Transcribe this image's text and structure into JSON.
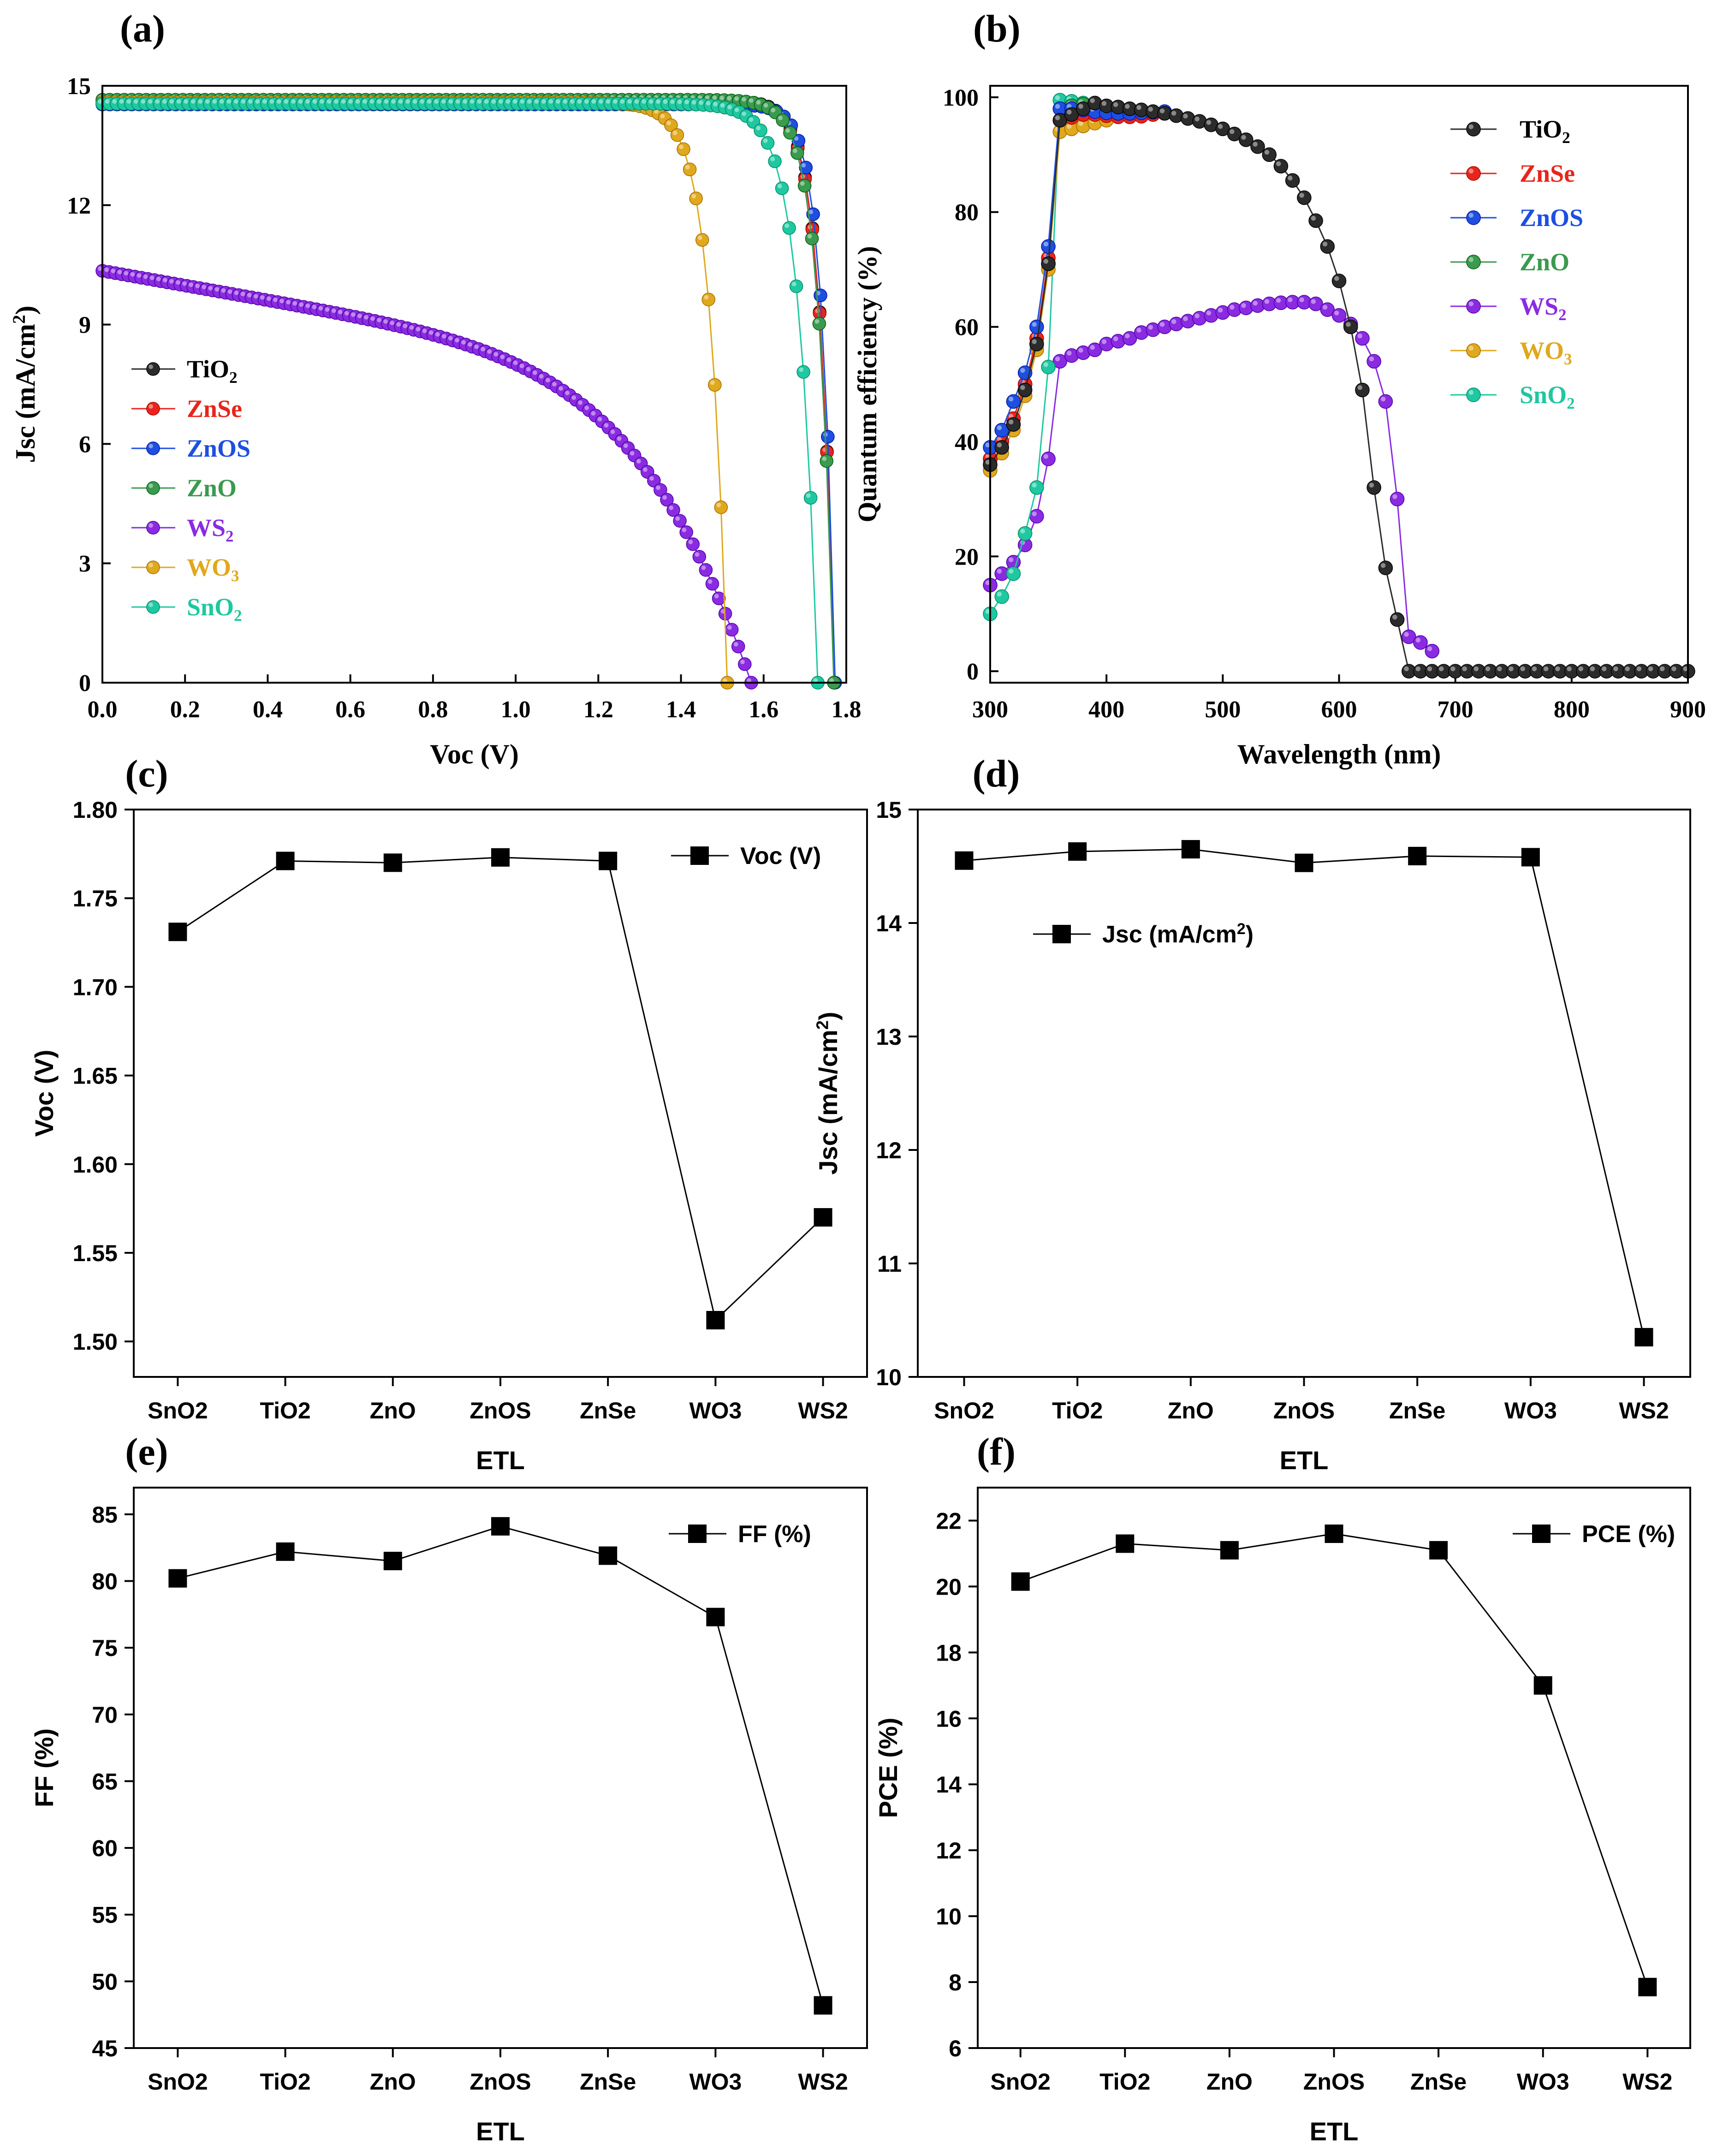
{
  "figure": {
    "colors": {
      "TiO2": "#2b2b2b",
      "ZnSe": "#e8251c",
      "ZnOS": "#1d4fe0",
      "ZnO": "#3a9a4e",
      "WS2": "#8a2be2",
      "WO3": "#e0a81c",
      "SnO2": "#1ec8a0",
      "black": "#000000"
    }
  },
  "chart_data": [
    {
      "id": "a",
      "panel_label": "(a)",
      "type": "line",
      "title": "",
      "xlabel": "Voc (V)",
      "ylabel": "Jsc (mA/cm²)",
      "xlim": [
        0,
        1.8
      ],
      "ylim": [
        0,
        15
      ],
      "xticks": [
        "0.0",
        "0.2",
        "0.4",
        "0.6",
        "0.8",
        "1.0",
        "1.2",
        "1.4",
        "1.6",
        "1.8"
      ],
      "yticks": [
        "0",
        "3",
        "6",
        "9",
        "12",
        "15"
      ],
      "legend_position": "left-middle",
      "series": [
        {
          "name": "TiO₂",
          "color_key": "TiO2",
          "jsc": 14.63,
          "voc": 1.771,
          "knee": 0.035
        },
        {
          "name": "ZnSe",
          "color_key": "ZnSe",
          "jsc": 14.59,
          "voc": 1.771,
          "knee": 0.035
        },
        {
          "name": "ZnOS",
          "color_key": "ZnOS",
          "jsc": 14.53,
          "voc": 1.773,
          "knee": 0.032
        },
        {
          "name": "ZnO",
          "color_key": "ZnO",
          "jsc": 14.65,
          "voc": 1.77,
          "knee": 0.037
        },
        {
          "name": "WS₂",
          "color_key": "WS2",
          "jsc": 10.35,
          "voc": 1.57,
          "knee": 0.2,
          "slope": 0.9
        },
        {
          "name": "WO₃",
          "color_key": "WO3",
          "jsc": 14.58,
          "voc": 1.512,
          "knee": 0.042
        },
        {
          "name": "SnO₂",
          "color_key": "SnO2",
          "jsc": 14.55,
          "voc": 1.731,
          "knee": 0.045
        }
      ]
    },
    {
      "id": "b",
      "panel_label": "(b)",
      "type": "line",
      "title": "",
      "xlabel": "Wavelength (nm)",
      "ylabel": "Quantum efficiency (%)",
      "xlim": [
        300,
        900
      ],
      "ylim": [
        -2,
        102
      ],
      "xticks": [
        "300",
        "400",
        "500",
        "600",
        "700",
        "800",
        "900"
      ],
      "yticks": [
        "0",
        "20",
        "40",
        "60",
        "80",
        "100"
      ],
      "legend_position": "top-right",
      "series": [
        {
          "name": "TiO₂",
          "color_key": "TiO2",
          "x": [
            300,
            310,
            320,
            330,
            340,
            350,
            360,
            370,
            380,
            390,
            400,
            410,
            420,
            430,
            440,
            450,
            460,
            470,
            480,
            490,
            500,
            510,
            520,
            530,
            540,
            550,
            560,
            570,
            580,
            590,
            600,
            610,
            620,
            630,
            640,
            650,
            660,
            670,
            680,
            690,
            700,
            710,
            720,
            730,
            740,
            750,
            760,
            770,
            780,
            790,
            800,
            810,
            820,
            830,
            840,
            850,
            860,
            870,
            880,
            890,
            900
          ],
          "y": [
            36,
            39,
            43,
            49,
            57,
            71,
            96,
            97,
            98,
            99,
            98.5,
            98.3,
            98,
            97.8,
            97.5,
            97.2,
            96.8,
            96.3,
            95.8,
            95.2,
            94.5,
            93.6,
            92.6,
            91.4,
            90,
            88,
            85.5,
            82.5,
            78.5,
            74,
            68,
            60,
            49,
            32,
            18,
            9,
            0,
            0,
            0,
            0,
            0,
            0,
            0,
            0,
            0,
            0,
            0,
            0,
            0,
            0,
            0,
            0,
            0,
            0,
            0,
            0,
            0,
            0,
            0,
            0,
            0
          ]
        },
        {
          "name": "ZnSe",
          "color_key": "ZnSe",
          "x": [
            300,
            310,
            320,
            330,
            340,
            350,
            360,
            370,
            380,
            390,
            400,
            410,
            420,
            430,
            440,
            450
          ],
          "y": [
            37,
            40,
            44,
            50,
            58,
            72,
            96,
            96.5,
            97,
            97,
            96.8,
            96.6,
            96.6,
            96.7,
            97,
            97.2
          ]
        },
        {
          "name": "ZnOS",
          "color_key": "ZnOS",
          "x": [
            300,
            310,
            320,
            330,
            340,
            350,
            360,
            370,
            380,
            390,
            400,
            410,
            420,
            430,
            440,
            450
          ],
          "y": [
            39,
            42,
            47,
            52,
            60,
            74,
            98,
            98,
            97.8,
            97.5,
            97.3,
            97.2,
            97.2,
            97.3,
            97.4,
            97.5
          ]
        },
        {
          "name": "ZnO",
          "color_key": "ZnO",
          "x": [
            300,
            310,
            320,
            330,
            340,
            350,
            360,
            370,
            380,
            390,
            400
          ],
          "y": [
            37,
            40,
            44,
            50,
            57,
            71,
            98,
            98.5,
            98.8,
            98.5,
            98
          ]
        },
        {
          "name": "WS₂",
          "color_key": "WS2",
          "x": [
            300,
            310,
            320,
            330,
            340,
            350,
            360,
            370,
            380,
            390,
            400,
            410,
            420,
            430,
            440,
            450,
            460,
            470,
            480,
            490,
            500,
            510,
            520,
            530,
            540,
            550,
            560,
            570,
            580,
            590,
            600,
            610,
            620,
            630,
            640,
            650,
            660,
            670,
            680
          ],
          "y": [
            15,
            17,
            19,
            22,
            27,
            37,
            54,
            55,
            55.5,
            56,
            57,
            57.5,
            58,
            59,
            59.5,
            60,
            60.5,
            61,
            61.5,
            62,
            62.5,
            63,
            63.3,
            63.7,
            64,
            64.2,
            64.3,
            64.3,
            64,
            63,
            62,
            60.5,
            58,
            54,
            47,
            30,
            6,
            5,
            3.5
          ]
        },
        {
          "name": "WO₃",
          "color_key": "WO3",
          "x": [
            300,
            310,
            320,
            330,
            340,
            350,
            360,
            370,
            380,
            390,
            400
          ],
          "y": [
            35,
            38,
            42,
            48,
            56,
            70,
            94,
            94.5,
            95,
            95.5,
            96
          ]
        },
        {
          "name": "SnO₂",
          "color_key": "SnO2",
          "x": [
            300,
            310,
            320,
            330,
            340,
            350,
            360,
            370,
            380,
            390
          ],
          "y": [
            10,
            13,
            17,
            24,
            32,
            53,
            99.5,
            99.3,
            99,
            98.6
          ]
        }
      ]
    },
    {
      "id": "c",
      "panel_label": "(c)",
      "type": "line",
      "title": "",
      "xlabel": "ETL",
      "ylabel": "Voc (V)",
      "categories": [
        "SnO2",
        "TiO2",
        "ZnO",
        "ZnOS",
        "ZnSe",
        "WO3",
        "WS2"
      ],
      "ylim": [
        1.48,
        1.8
      ],
      "yticks": [
        "1.50",
        "1.55",
        "1.60",
        "1.65",
        "1.70",
        "1.75",
        "1.80"
      ],
      "legend_position": "top-right",
      "series": [
        {
          "name": "Voc (V)",
          "values": [
            1.731,
            1.771,
            1.77,
            1.773,
            1.771,
            1.512,
            1.57
          ]
        }
      ]
    },
    {
      "id": "d",
      "panel_label": "(d)",
      "type": "line",
      "title": "",
      "xlabel": "ETL",
      "ylabel": "Jsc (mA/cm²)",
      "categories": [
        "SnO2",
        "TiO2",
        "ZnO",
        "ZnOS",
        "ZnSe",
        "WO3",
        "WS2"
      ],
      "ylim": [
        10,
        15
      ],
      "yticks": [
        "10",
        "11",
        "12",
        "13",
        "14",
        "15"
      ],
      "legend_position": "upper-left",
      "series": [
        {
          "name": "Jsc (mA/cm²)",
          "values": [
            14.55,
            14.63,
            14.65,
            14.53,
            14.59,
            14.58,
            10.35
          ]
        }
      ]
    },
    {
      "id": "e",
      "panel_label": "(e)",
      "type": "line",
      "title": "",
      "xlabel": "ETL",
      "ylabel": "FF (%)",
      "categories": [
        "SnO2",
        "TiO2",
        "ZnO",
        "ZnOS",
        "ZnSe",
        "WO3",
        "WS2"
      ],
      "ylim": [
        45,
        87
      ],
      "yticks": [
        "45",
        "50",
        "55",
        "60",
        "65",
        "70",
        "75",
        "80",
        "85"
      ],
      "legend_position": "top-right",
      "series": [
        {
          "name": "FF (%)",
          "values": [
            80.2,
            82.2,
            81.5,
            84.1,
            81.9,
            77.3,
            48.2
          ]
        }
      ]
    },
    {
      "id": "f",
      "panel_label": "(f)",
      "type": "line",
      "title": "",
      "xlabel": "ETL",
      "ylabel": "PCE (%)",
      "categories": [
        "SnO2",
        "TiO2",
        "ZnO",
        "ZnOS",
        "ZnSe",
        "WO3",
        "WS2"
      ],
      "ylim": [
        6,
        23
      ],
      "yticks": [
        "6",
        "8",
        "10",
        "12",
        "14",
        "16",
        "18",
        "20",
        "22"
      ],
      "legend_position": "top-right",
      "series": [
        {
          "name": "PCE (%)",
          "values": [
            20.15,
            21.3,
            21.1,
            21.6,
            21.1,
            17.0,
            7.85
          ]
        }
      ]
    }
  ]
}
